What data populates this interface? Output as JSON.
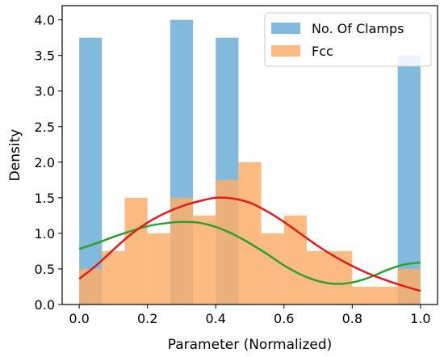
{
  "chart_data": {
    "type": "bar",
    "xlabel": "Parameter (Normalized)",
    "ylabel": "Density",
    "xlim": [
      -0.05,
      1.05
    ],
    "ylim": [
      0,
      4.2
    ],
    "xticks": [
      "0.0",
      "0.2",
      "0.4",
      "0.6",
      "0.8",
      "1.0"
    ],
    "yticks": [
      "0.0",
      "0.5",
      "1.0",
      "1.5",
      "2.0",
      "2.5",
      "3.0",
      "3.5",
      "4.0"
    ],
    "grid": false,
    "legend_position": "top-right",
    "series": [
      {
        "name": "No. Of Clamps",
        "color": "#6baed6",
        "bin_width": 0.0667,
        "bins": [
          {
            "x0": 0.0,
            "value": 3.75
          },
          {
            "x0": 0.0667,
            "value": 0.0
          },
          {
            "x0": 0.1333,
            "value": 0.0
          },
          {
            "x0": 0.2,
            "value": 0.0
          },
          {
            "x0": 0.2667,
            "value": 4.0
          },
          {
            "x0": 0.3333,
            "value": 0.0
          },
          {
            "x0": 0.4,
            "value": 3.75
          },
          {
            "x0": 0.4667,
            "value": 0.0
          },
          {
            "x0": 0.5333,
            "value": 0.0
          },
          {
            "x0": 0.6,
            "value": 0.0
          },
          {
            "x0": 0.6667,
            "value": 0.0
          },
          {
            "x0": 0.7333,
            "value": 0.0
          },
          {
            "x0": 0.8,
            "value": 0.0
          },
          {
            "x0": 0.8667,
            "value": 0.0
          },
          {
            "x0": 0.9333,
            "value": 3.5
          }
        ]
      },
      {
        "name": "Fcc",
        "color": "#fdae6b",
        "bin_width": 0.0667,
        "bins": [
          {
            "x0": 0.0,
            "value": 0.5
          },
          {
            "x0": 0.0667,
            "value": 0.75
          },
          {
            "x0": 0.1333,
            "value": 1.5
          },
          {
            "x0": 0.2,
            "value": 1.0
          },
          {
            "x0": 0.2667,
            "value": 1.5
          },
          {
            "x0": 0.3333,
            "value": 1.25
          },
          {
            "x0": 0.4,
            "value": 1.75
          },
          {
            "x0": 0.4667,
            "value": 2.0
          },
          {
            "x0": 0.5333,
            "value": 1.0
          },
          {
            "x0": 0.6,
            "value": 1.25
          },
          {
            "x0": 0.6667,
            "value": 0.75
          },
          {
            "x0": 0.7333,
            "value": 0.75
          },
          {
            "x0": 0.8,
            "value": 0.25
          },
          {
            "x0": 0.8667,
            "value": 0.25
          },
          {
            "x0": 0.9333,
            "value": 0.5
          }
        ]
      }
    ],
    "kde_curves": [
      {
        "color": "#2ca02c",
        "points": [
          [
            0.0,
            0.78
          ],
          [
            0.05,
            0.86
          ],
          [
            0.1,
            0.95
          ],
          [
            0.15,
            1.03
          ],
          [
            0.2,
            1.1
          ],
          [
            0.25,
            1.14
          ],
          [
            0.3,
            1.16
          ],
          [
            0.35,
            1.15
          ],
          [
            0.4,
            1.09
          ],
          [
            0.45,
            0.99
          ],
          [
            0.5,
            0.86
          ],
          [
            0.55,
            0.71
          ],
          [
            0.6,
            0.55
          ],
          [
            0.65,
            0.42
          ],
          [
            0.7,
            0.33
          ],
          [
            0.75,
            0.29
          ],
          [
            0.8,
            0.31
          ],
          [
            0.85,
            0.38
          ],
          [
            0.9,
            0.48
          ],
          [
            0.95,
            0.56
          ],
          [
            1.0,
            0.59
          ]
        ]
      },
      {
        "color": "#e31a1c",
        "points": [
          [
            0.0,
            0.36
          ],
          [
            0.05,
            0.55
          ],
          [
            0.1,
            0.77
          ],
          [
            0.15,
            0.98
          ],
          [
            0.2,
            1.15
          ],
          [
            0.25,
            1.28
          ],
          [
            0.3,
            1.38
          ],
          [
            0.35,
            1.45
          ],
          [
            0.4,
            1.5
          ],
          [
            0.45,
            1.49
          ],
          [
            0.5,
            1.43
          ],
          [
            0.55,
            1.31
          ],
          [
            0.6,
            1.16
          ],
          [
            0.65,
            0.99
          ],
          [
            0.7,
            0.82
          ],
          [
            0.75,
            0.67
          ],
          [
            0.8,
            0.54
          ],
          [
            0.85,
            0.43
          ],
          [
            0.9,
            0.34
          ],
          [
            0.95,
            0.26
          ],
          [
            1.0,
            0.19
          ]
        ]
      }
    ]
  }
}
